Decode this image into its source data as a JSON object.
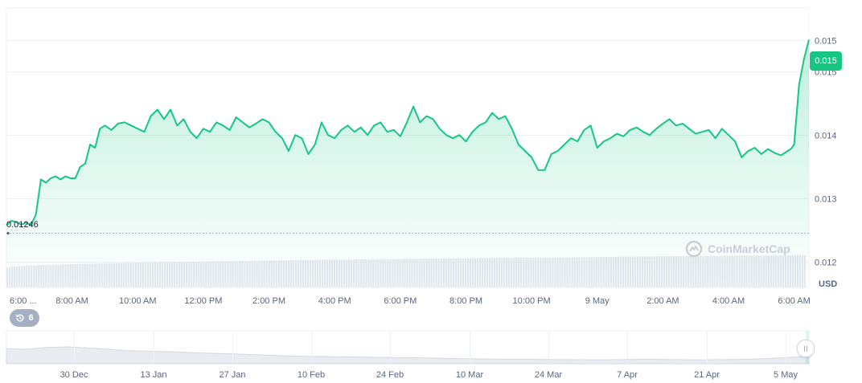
{
  "chart_data": {
    "type": "area",
    "currency_label": "USD",
    "current_price_label": "0.015",
    "reference_label": "0.01246",
    "reference_value": 0.01246,
    "y_axis": {
      "ticks": [
        "0.015",
        "0.015",
        "0.014",
        "0.013",
        "0.012"
      ],
      "tick_values": [
        0.0155,
        0.015,
        0.014,
        0.013,
        0.012
      ],
      "ylim": [
        0.0116,
        0.016
      ]
    },
    "x_axis": {
      "ticks": [
        "6:00 ...",
        "8:00 AM",
        "10:00 AM",
        "12:00 PM",
        "2:00 PM",
        "4:00 PM",
        "6:00 PM",
        "8:00 PM",
        "10:00 PM",
        "9 May",
        "2:00 AM",
        "4:00 AM",
        "6:00 AM"
      ],
      "tick_hours": [
        0,
        2,
        4,
        6,
        8,
        10,
        12,
        14,
        16,
        18,
        20,
        22,
        24
      ]
    },
    "series": [
      {
        "hours": [
          0.0,
          0.15,
          0.3,
          0.45,
          0.6,
          0.75,
          0.9,
          1.05,
          1.2,
          1.35,
          1.5,
          1.65,
          1.8,
          1.95,
          2.1,
          2.25,
          2.4,
          2.55,
          2.7,
          2.85,
          3.0,
          3.2,
          3.4,
          3.6,
          3.8,
          4.0,
          4.2,
          4.4,
          4.6,
          4.8,
          5.0,
          5.2,
          5.4,
          5.6,
          5.8,
          6.0,
          6.2,
          6.4,
          6.6,
          6.8,
          7.0,
          7.2,
          7.4,
          7.6,
          7.8,
          8.0,
          8.2,
          8.4,
          8.6,
          8.8,
          9.0,
          9.2,
          9.4,
          9.6,
          9.8,
          10.0,
          10.2,
          10.4,
          10.6,
          10.8,
          11.0,
          11.2,
          11.4,
          11.6,
          11.8,
          12.0,
          12.2,
          12.4,
          12.6,
          12.8,
          13.0,
          13.2,
          13.4,
          13.6,
          13.8,
          14.0,
          14.2,
          14.4,
          14.6,
          14.8,
          15.0,
          15.2,
          15.4,
          15.6,
          15.8,
          16.0,
          16.2,
          16.4,
          16.6,
          16.8,
          17.0,
          17.2,
          17.4,
          17.6,
          17.8,
          18.0,
          18.2,
          18.4,
          18.6,
          18.8,
          19.0,
          19.2,
          19.4,
          19.6,
          19.8,
          20.0,
          20.2,
          20.4,
          20.6,
          20.8,
          21.0,
          21.2,
          21.4,
          21.6,
          21.8,
          22.0,
          22.2,
          22.4,
          22.6,
          22.8,
          23.0,
          23.2,
          23.4,
          23.6,
          23.8,
          23.9,
          24.0,
          24.15,
          24.3,
          24.45
        ],
        "values": [
          0.01258,
          0.01265,
          0.01263,
          0.01259,
          0.01262,
          0.01258,
          0.01275,
          0.0133,
          0.01325,
          0.01332,
          0.01335,
          0.0133,
          0.01335,
          0.01332,
          0.01332,
          0.0135,
          0.01355,
          0.01385,
          0.0138,
          0.0141,
          0.01415,
          0.01408,
          0.01418,
          0.0142,
          0.01415,
          0.0141,
          0.01405,
          0.0143,
          0.0144,
          0.01425,
          0.0144,
          0.01415,
          0.01425,
          0.01405,
          0.01395,
          0.0141,
          0.01405,
          0.0142,
          0.01415,
          0.01408,
          0.01428,
          0.0142,
          0.01412,
          0.01418,
          0.01425,
          0.0142,
          0.01405,
          0.01395,
          0.01375,
          0.014,
          0.01395,
          0.0137,
          0.01385,
          0.0142,
          0.014,
          0.01395,
          0.01408,
          0.01415,
          0.01405,
          0.01412,
          0.014,
          0.01415,
          0.0142,
          0.01405,
          0.01408,
          0.01398,
          0.0142,
          0.01445,
          0.0142,
          0.0143,
          0.01425,
          0.0141,
          0.014,
          0.01395,
          0.014,
          0.0139,
          0.01405,
          0.01415,
          0.0142,
          0.01435,
          0.01425,
          0.0143,
          0.0141,
          0.01385,
          0.01375,
          0.01365,
          0.01345,
          0.01345,
          0.0137,
          0.01375,
          0.01385,
          0.01395,
          0.0139,
          0.01408,
          0.01415,
          0.0138,
          0.0139,
          0.01395,
          0.01402,
          0.01398,
          0.01408,
          0.01412,
          0.01405,
          0.014,
          0.0141,
          0.01418,
          0.01425,
          0.01415,
          0.01418,
          0.0141,
          0.01402,
          0.01405,
          0.01408,
          0.01395,
          0.0141,
          0.014,
          0.0139,
          0.01365,
          0.01375,
          0.0138,
          0.0137,
          0.01378,
          0.01372,
          0.01368,
          0.01375,
          0.01378,
          0.01385,
          0.0148,
          0.0152,
          0.0155
        ]
      }
    ],
    "volume": {
      "start_fraction": 0.45,
      "end_fraction": 0.73
    },
    "navigator": {
      "ticks": [
        "30 Dec",
        "13 Jan",
        "27 Jan",
        "10 Feb",
        "24 Feb",
        "10 Mar",
        "24 Mar",
        "7 Apr",
        "21 Apr",
        "5 May"
      ],
      "values": [
        0.58,
        0.55,
        0.62,
        0.64,
        0.6,
        0.56,
        0.5,
        0.48,
        0.46,
        0.43,
        0.4,
        0.38,
        0.36,
        0.33,
        0.3,
        0.28,
        0.27,
        0.26,
        0.25,
        0.24,
        0.23,
        0.22,
        0.2,
        0.19,
        0.18,
        0.17,
        0.17,
        0.16,
        0.16,
        0.15,
        0.15,
        0.16,
        0.17,
        0.16,
        0.15,
        0.15,
        0.16,
        0.17,
        0.2,
        0.24,
        0.28
      ]
    },
    "legend": "none",
    "grid": true
  },
  "controls": {
    "history_count": "6"
  },
  "branding": {
    "watermark": "CoinMarketCap"
  },
  "colors": {
    "line": "#16c784",
    "fill_top": "#16c784",
    "grid": "#eff2f5",
    "volume": "#e3e7ee",
    "axis_text": "#58667e"
  }
}
